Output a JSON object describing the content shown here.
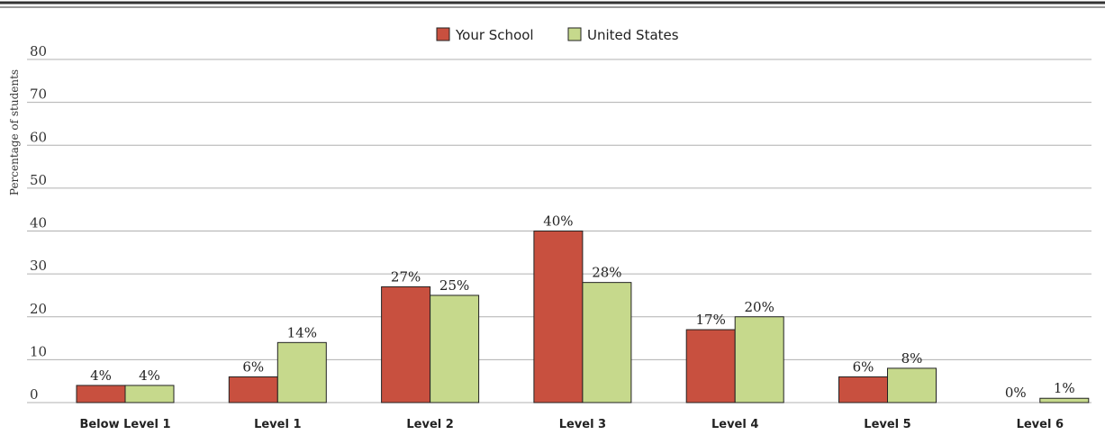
{
  "chart_data": {
    "type": "bar",
    "ylabel": "Percentage of students",
    "xlabel": "",
    "ylim": [
      0,
      80
    ],
    "yticks": [
      0,
      10,
      20,
      30,
      40,
      50,
      60,
      70,
      80
    ],
    "grid": true,
    "legend_position": "top-center",
    "categories": [
      "Below Level 1",
      "Level 1",
      "Level 2",
      "Level 3",
      "Level 4",
      "Level 5",
      "Level 6"
    ],
    "series": [
      {
        "name": "Your School",
        "color": "#c8503f",
        "values": [
          4,
          6,
          27,
          40,
          17,
          6,
          0
        ],
        "labels": [
          "4%",
          "6%",
          "27%",
          "40%",
          "17%",
          "6%",
          "0%"
        ]
      },
      {
        "name": "United States",
        "color": "#c6d98c",
        "values": [
          4,
          14,
          25,
          28,
          20,
          8,
          1
        ],
        "labels": [
          "4%",
          "14%",
          "25%",
          "28%",
          "20%",
          "8%",
          "1%"
        ]
      }
    ]
  }
}
